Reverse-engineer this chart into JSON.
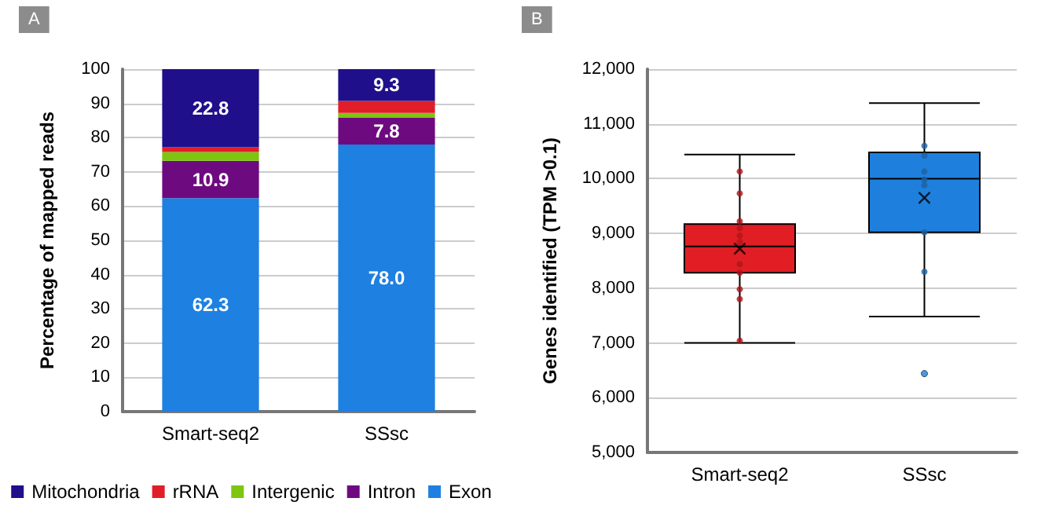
{
  "chart_data": [
    {
      "type": "bar",
      "title": "A",
      "stacked": true,
      "categories": [
        "Smart-seq2",
        "SSsc"
      ],
      "ylabel": "Percentage of mapped reads",
      "ylim": [
        0,
        100
      ],
      "yticks": [
        0,
        10,
        20,
        30,
        40,
        50,
        60,
        70,
        80,
        90,
        100
      ],
      "grid": "y",
      "legend": "bottom",
      "series": [
        {
          "name": "Exon",
          "color": "#1e80e0",
          "values": [
            62.3,
            78.0
          ],
          "value_labels": [
            "62.3",
            "78.0"
          ]
        },
        {
          "name": "Intron",
          "color": "#6e0a80",
          "values": [
            10.9,
            7.8
          ],
          "value_labels": [
            "10.9",
            "7.8"
          ]
        },
        {
          "name": "Intergenic",
          "color": "#7dc511",
          "values": [
            2.6,
            1.4
          ],
          "value_labels": [
            null,
            null
          ]
        },
        {
          "name": "rRNA",
          "color": "#e01e2a",
          "values": [
            1.4,
            3.5
          ],
          "value_labels": [
            null,
            null
          ]
        },
        {
          "name": "Mitochondria",
          "color": "#1f0f8a",
          "values": [
            22.8,
            9.3
          ],
          "value_labels": [
            "22.8",
            "9.3"
          ]
        }
      ]
    },
    {
      "type": "box",
      "title": "B",
      "categories": [
        "Smart-seq2",
        "SSsc"
      ],
      "ylabel": "Genes identified (TPM >0.1)",
      "ylim": [
        5000,
        12000
      ],
      "yticks": [
        {
          "value": 5000,
          "label": "5,000"
        },
        {
          "value": 6000,
          "label": "6,000"
        },
        {
          "value": 7000,
          "label": "7,000"
        },
        {
          "value": 8000,
          "label": "8,000"
        },
        {
          "value": 9000,
          "label": "9,000"
        },
        {
          "value": 10000,
          "label": "10,000"
        },
        {
          "value": 11000,
          "label": "11,000"
        },
        {
          "value": 12000,
          "label": "12,000"
        }
      ],
      "grid": "y",
      "colors": [
        "#e01e24",
        "#1e80dc"
      ],
      "boxes": [
        {
          "low": 7000,
          "q1": 8280,
          "median": 8760,
          "q3": 9170,
          "high": 10440,
          "mean": 8720
        },
        {
          "low": 7480,
          "q1": 9020,
          "median": 10000,
          "q3": 10480,
          "high": 11380,
          "mean": 9650,
          "outliers": [
            6440
          ]
        }
      ],
      "marker": "circle",
      "series": [
        {
          "type": "scatter",
          "color": "#b0141c",
          "x": [
            "Smart-seq2",
            "Smart-seq2",
            "Smart-seq2",
            "Smart-seq2",
            "Smart-seq2",
            "Smart-seq2",
            "Smart-seq2",
            "Smart-seq2",
            "Smart-seq2",
            "Smart-seq2",
            "Smart-seq2"
          ],
          "values": [
            10130,
            9730,
            9220,
            9100,
            8960,
            8840,
            8440,
            8280,
            7980,
            7800,
            7040
          ]
        },
        {
          "type": "scatter",
          "color": "#1f5f9f",
          "x": [
            "SSsc",
            "SSsc",
            "SSsc",
            "SSsc",
            "SSsc",
            "SSsc",
            "SSsc"
          ],
          "values": [
            10600,
            10420,
            10130,
            9980,
            9880,
            9020,
            8300
          ]
        }
      ]
    }
  ]
}
